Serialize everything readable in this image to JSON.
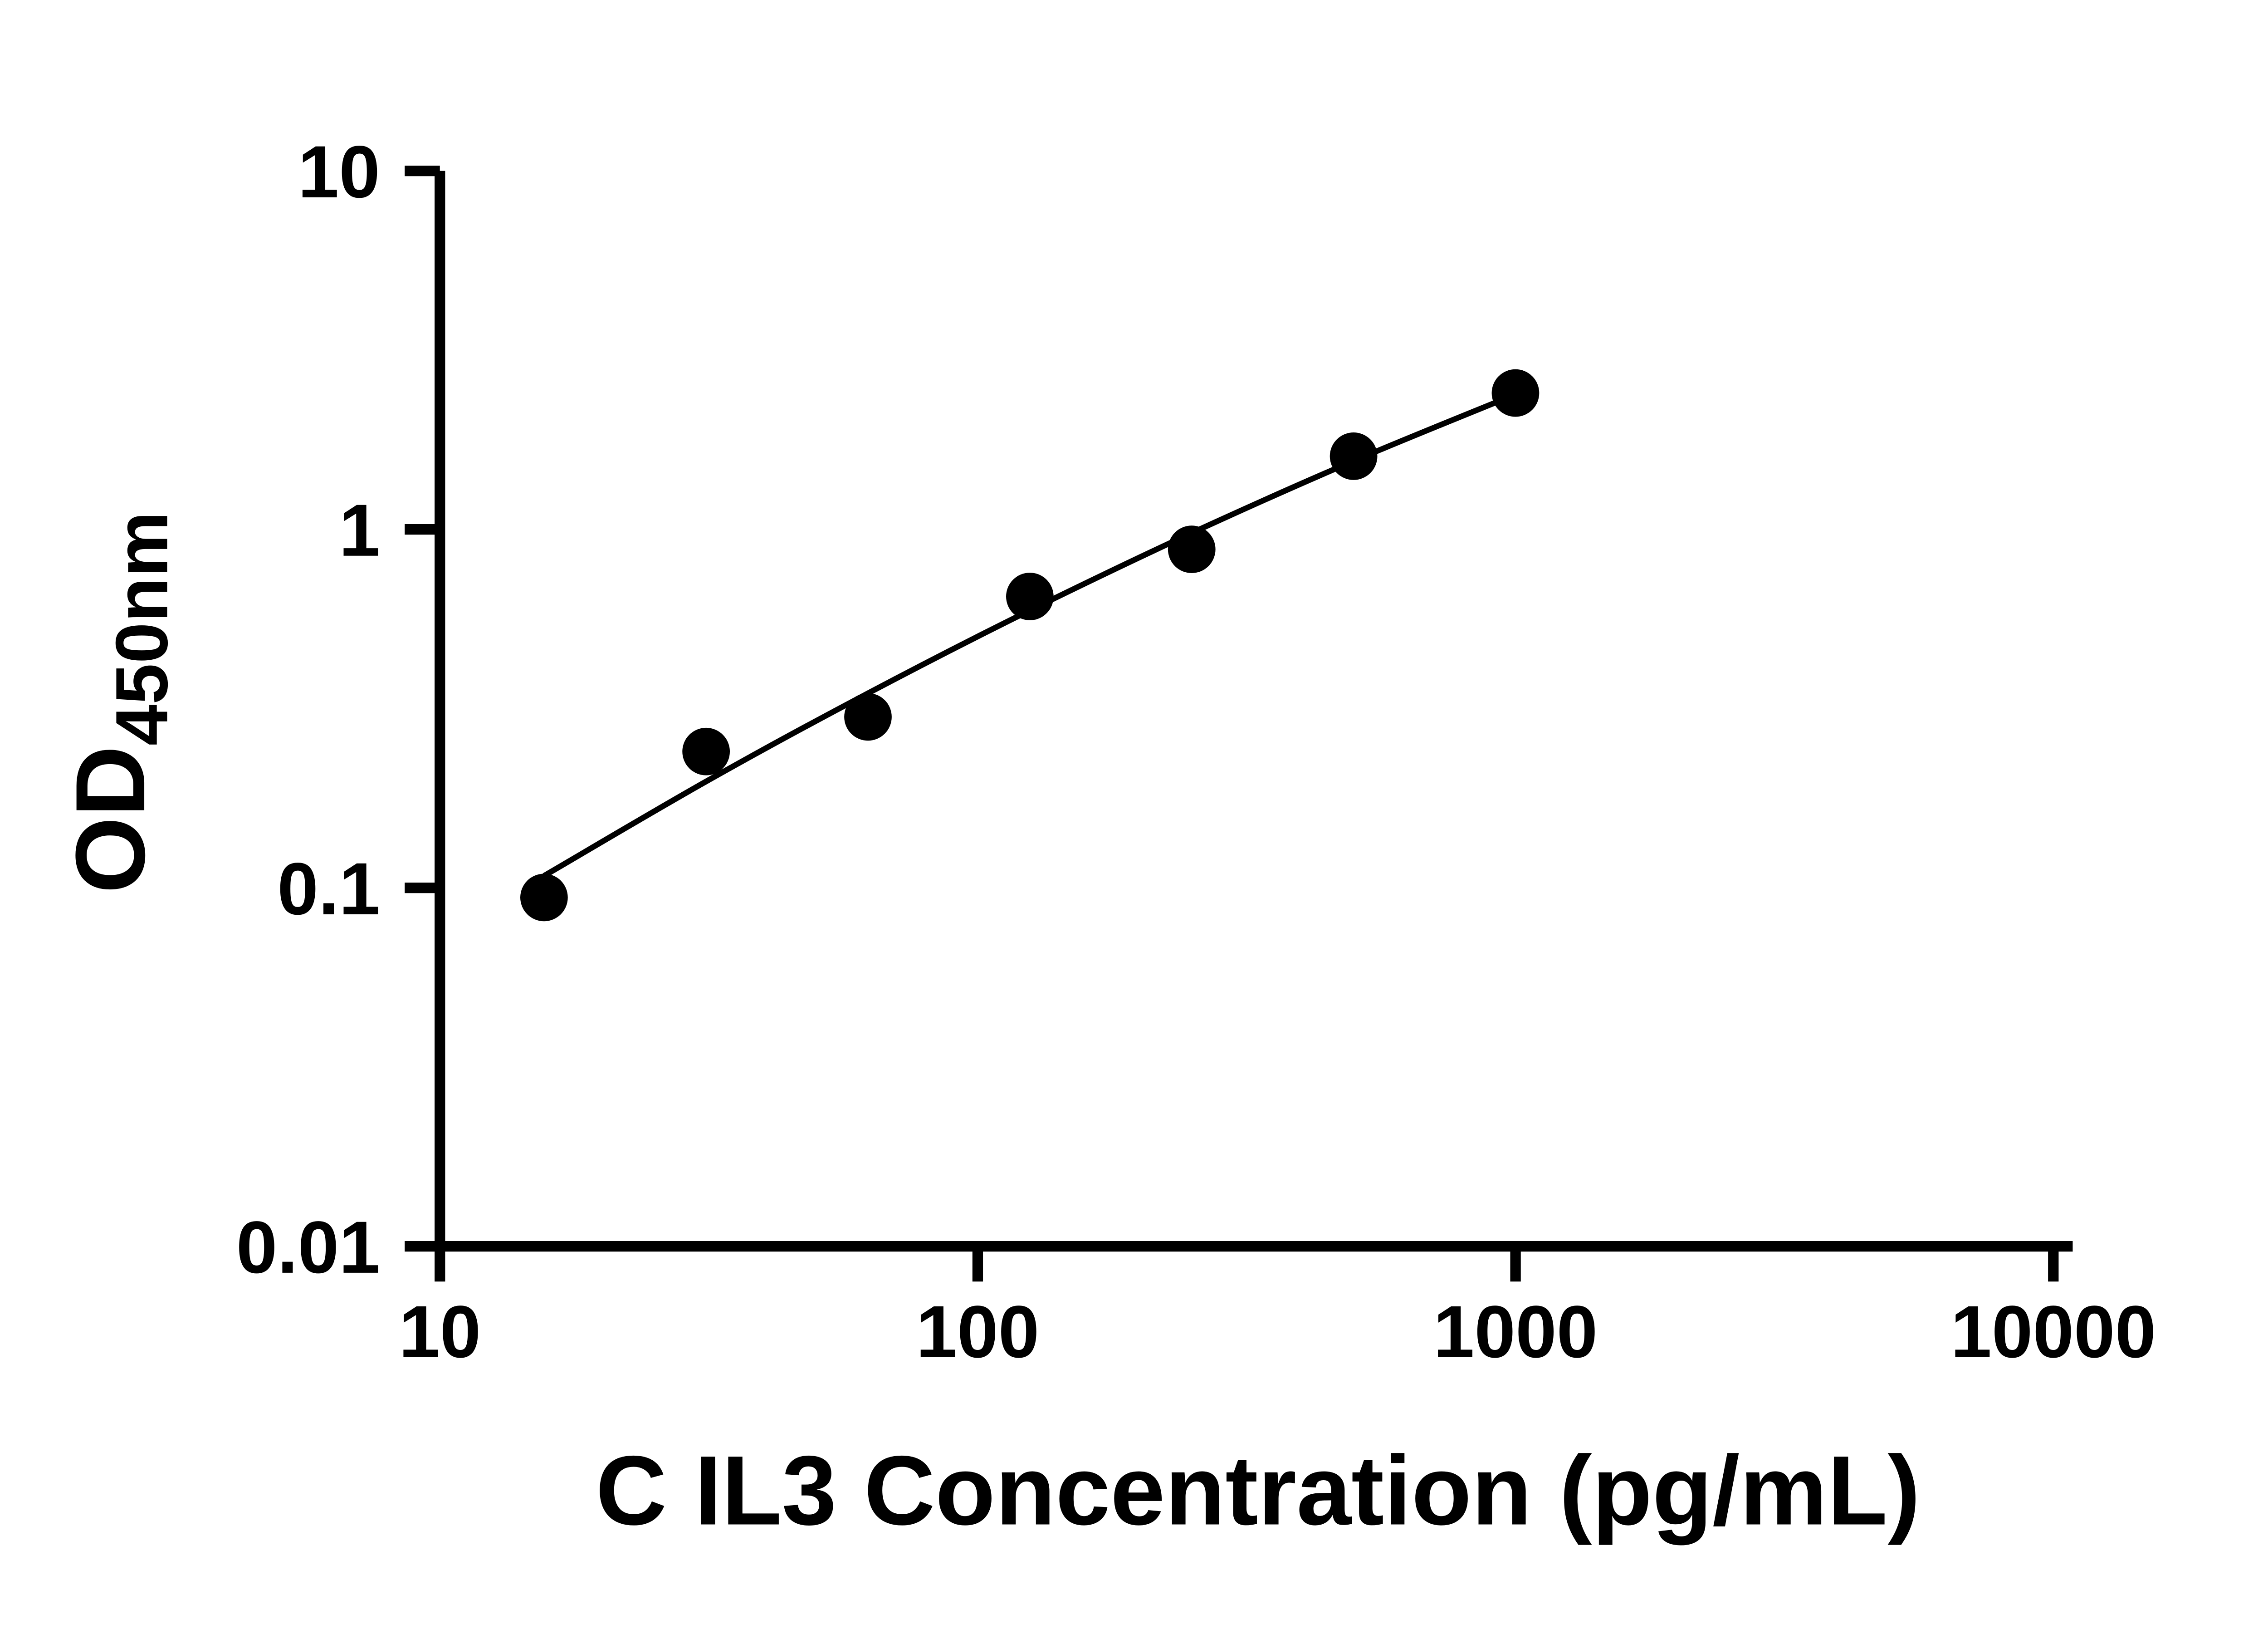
{
  "chart": {
    "background_color": "#ffffff",
    "axis_color": "#000000",
    "point_color": "#000000",
    "line_color": "#000000",
    "text_color": "#000000"
  },
  "chart_data": {
    "type": "scatter",
    "title": "",
    "xlabel": "C IL3 Concentration (pg/mL)",
    "ylabel": "OD",
    "ylabel_subscript": "450nm",
    "x_scale": "log",
    "y_scale": "log",
    "xlim": [
      10,
      10000
    ],
    "ylim": [
      0.01,
      10
    ],
    "x_ticks": [
      10,
      100,
      1000,
      10000
    ],
    "x_tick_labels": [
      "10",
      "100",
      "1000",
      "10000"
    ],
    "y_ticks": [
      0.01,
      0.1,
      1,
      10
    ],
    "y_tick_labels": [
      "0.01",
      "0.1",
      "1",
      "10"
    ],
    "grid": false,
    "legend": null,
    "marker": "filled-circle",
    "points": [
      {
        "x": 15.625,
        "y": 0.094
      },
      {
        "x": 31.25,
        "y": 0.24
      },
      {
        "x": 62.5,
        "y": 0.3
      },
      {
        "x": 125,
        "y": 0.65
      },
      {
        "x": 250,
        "y": 0.88
      },
      {
        "x": 500,
        "y": 1.6
      },
      {
        "x": 1000,
        "y": 2.4
      }
    ],
    "fit_line": [
      {
        "x": 15.625,
        "y": 0.108
      },
      {
        "x": 31.25,
        "y": 0.198
      },
      {
        "x": 62.5,
        "y": 0.349
      },
      {
        "x": 125,
        "y": 0.594
      },
      {
        "x": 250,
        "y": 0.977
      },
      {
        "x": 500,
        "y": 1.552
      },
      {
        "x": 1000,
        "y": 2.38
      }
    ]
  }
}
